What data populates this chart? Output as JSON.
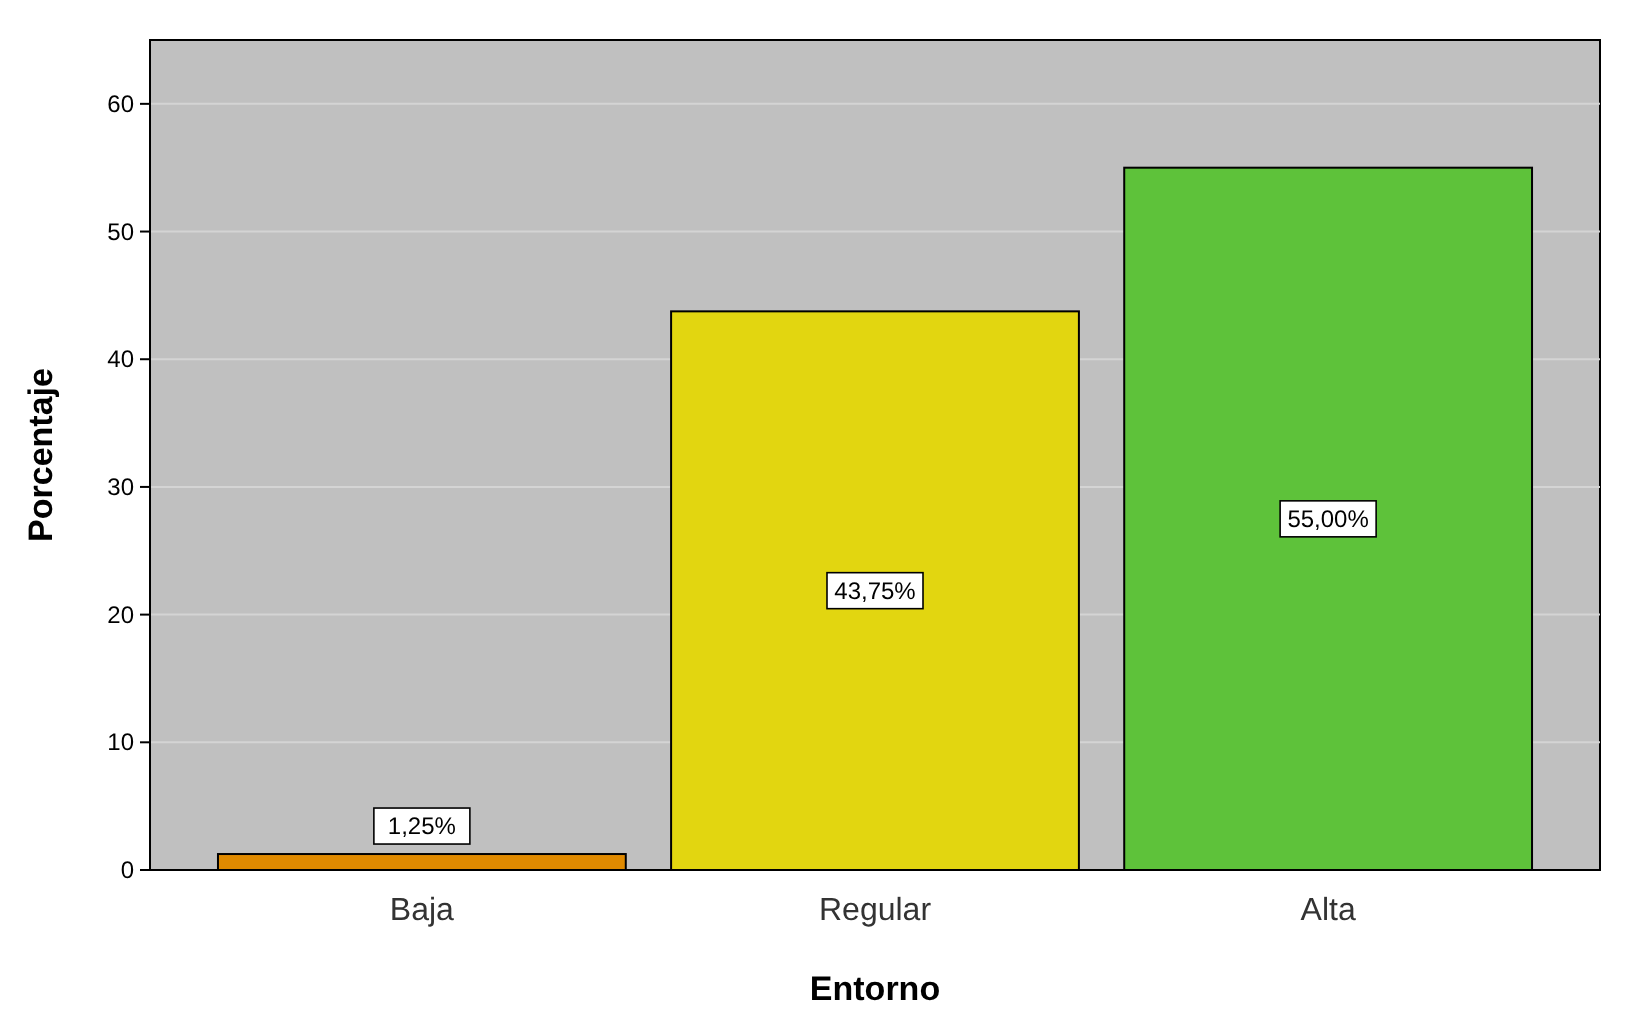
{
  "chart_data": {
    "type": "bar",
    "xlabel": "Entorno",
    "ylabel": "Porcentaje",
    "categories": [
      "Baja",
      "Regular",
      "Alta"
    ],
    "values": [
      1.25,
      43.75,
      55
    ],
    "colors": [
      "#e08a00",
      "#e2d610",
      "#5ec23a"
    ],
    "value_labels": [
      "1,25%",
      "43,75%",
      "55,00%"
    ],
    "ylim": [
      0,
      65
    ],
    "yticks": [
      0,
      10,
      20,
      30,
      40,
      50,
      60
    ],
    "grid": "y"
  }
}
